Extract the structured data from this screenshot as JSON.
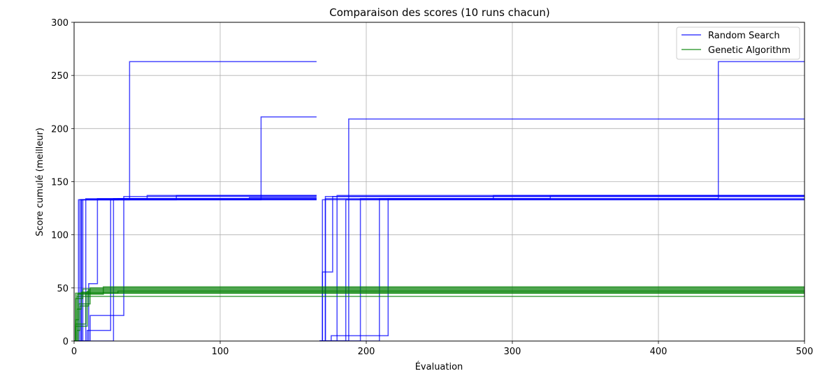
{
  "chart_data": {
    "type": "line",
    "title": "Comparaison des scores (10 runs chacun)",
    "xlabel": "Évaluation",
    "ylabel": "Score cumulé (meilleur)",
    "xlim": [
      0,
      500
    ],
    "ylim": [
      0,
      300
    ],
    "xticks": [
      0,
      100,
      200,
      300,
      400,
      500
    ],
    "yticks": [
      0,
      50,
      100,
      150,
      200,
      250,
      300
    ],
    "grid": true,
    "legend_position": "top-right",
    "legend": [
      {
        "label": "Random Search",
        "color": "#0000ff"
      },
      {
        "label": "Genetic Algorithm",
        "color": "#008000"
      }
    ],
    "series": [
      {
        "name": "Random Search",
        "color": "#0000ff",
        "runs": [
          {
            "x_start": 0,
            "x_end": 166,
            "points": [
              [
                0,
                0
              ],
              [
                3,
                0
              ],
              [
                3,
                133
              ],
              [
                166,
                133
              ]
            ]
          },
          {
            "x_start": 0,
            "x_end": 166,
            "points": [
              [
                0,
                0
              ],
              [
                5,
                0
              ],
              [
                5,
                133
              ],
              [
                166,
                133
              ]
            ]
          },
          {
            "x_start": 0,
            "x_end": 166,
            "points": [
              [
                0,
                0
              ],
              [
                8,
                0
              ],
              [
                8,
                134
              ],
              [
                166,
                134
              ]
            ]
          },
          {
            "x_start": 0,
            "x_end": 166,
            "points": [
              [
                0,
                0
              ],
              [
                9,
                0
              ],
              [
                9,
                10
              ],
              [
                25,
                10
              ],
              [
                25,
                133
              ],
              [
                30,
                133
              ],
              [
                30,
                134
              ],
              [
                120,
                134
              ],
              [
                120,
                135
              ],
              [
                166,
                135
              ]
            ]
          },
          {
            "x_start": 0,
            "x_end": 166,
            "points": [
              [
                0,
                0
              ],
              [
                11,
                0
              ],
              [
                11,
                24
              ],
              [
                34,
                24
              ],
              [
                34,
                136
              ],
              [
                166,
                136
              ]
            ]
          },
          {
            "x_start": 0,
            "x_end": 166,
            "points": [
              [
                0,
                0
              ],
              [
                27,
                0
              ],
              [
                27,
                134
              ],
              [
                166,
                134
              ]
            ]
          },
          {
            "x_start": 0,
            "x_end": 166,
            "points": [
              [
                0,
                0
              ],
              [
                10,
                0
              ],
              [
                10,
                54
              ],
              [
                16,
                54
              ],
              [
                16,
                134
              ],
              [
                50,
                134
              ],
              [
                50,
                137
              ],
              [
                166,
                137
              ]
            ]
          },
          {
            "x_start": 0,
            "x_end": 166,
            "points": [
              [
                0,
                0
              ],
              [
                5,
                0
              ],
              [
                5,
                133
              ],
              [
                38,
                133
              ],
              [
                38,
                263
              ],
              [
                166,
                263
              ]
            ]
          },
          {
            "x_start": 0,
            "x_end": 166,
            "points": [
              [
                0,
                0
              ],
              [
                6,
                0
              ],
              [
                6,
                133
              ],
              [
                128,
                133
              ],
              [
                128,
                211
              ],
              [
                166,
                211
              ]
            ]
          },
          {
            "x_start": 0,
            "x_end": 166,
            "points": [
              [
                0,
                0
              ],
              [
                4,
                0
              ],
              [
                4,
                133
              ],
              [
                70,
                133
              ],
              [
                70,
                137
              ],
              [
                166,
                137
              ]
            ]
          },
          {
            "x_start": 168,
            "x_end": 500,
            "points": [
              [
                168,
                0
              ],
              [
                170,
                0
              ],
              [
                170,
                133
              ],
              [
                500,
                133
              ]
            ]
          },
          {
            "x_start": 168,
            "x_end": 500,
            "points": [
              [
                168,
                0
              ],
              [
                170,
                0
              ],
              [
                170,
                65
              ],
              [
                177,
                65
              ],
              [
                177,
                136
              ],
              [
                500,
                136
              ]
            ]
          },
          {
            "x_start": 168,
            "x_end": 500,
            "points": [
              [
                168,
                0
              ],
              [
                172,
                0
              ],
              [
                172,
                136
              ],
              [
                500,
                136
              ]
            ]
          },
          {
            "x_start": 168,
            "x_end": 500,
            "points": [
              [
                168,
                0
              ],
              [
                176,
                0
              ],
              [
                176,
                5
              ],
              [
                215,
                5
              ],
              [
                215,
                134
              ],
              [
                326,
                134
              ],
              [
                326,
                137
              ],
              [
                500,
                137
              ]
            ]
          },
          {
            "x_start": 168,
            "x_end": 500,
            "points": [
              [
                168,
                0
              ],
              [
                186,
                0
              ],
              [
                186,
                133
              ],
              [
                500,
                133
              ]
            ]
          },
          {
            "x_start": 168,
            "x_end": 500,
            "points": [
              [
                168,
                0
              ],
              [
                188,
                0
              ],
              [
                188,
                209
              ],
              [
                500,
                209
              ]
            ]
          },
          {
            "x_start": 168,
            "x_end": 500,
            "points": [
              [
                168,
                0
              ],
              [
                196,
                0
              ],
              [
                196,
                134
              ],
              [
                500,
                134
              ]
            ]
          },
          {
            "x_start": 168,
            "x_end": 500,
            "points": [
              [
                168,
                0
              ],
              [
                209,
                0
              ],
              [
                209,
                134
              ],
              [
                287,
                134
              ],
              [
                287,
                137
              ],
              [
                500,
                137
              ]
            ]
          },
          {
            "x_start": 168,
            "x_end": 500,
            "points": [
              [
                168,
                0
              ],
              [
                180,
                0
              ],
              [
                180,
                137
              ],
              [
                500,
                137
              ]
            ]
          },
          {
            "x_start": 168,
            "x_end": 500,
            "points": [
              [
                168,
                0
              ],
              [
                172,
                0
              ],
              [
                172,
                134
              ],
              [
                441,
                134
              ],
              [
                441,
                263
              ],
              [
                500,
                263
              ]
            ]
          }
        ]
      },
      {
        "name": "Genetic Algorithm",
        "color": "#008000",
        "runs": [
          {
            "x_start": 0,
            "x_end": 500,
            "points": [
              [
                0,
                0
              ],
              [
                1,
                0
              ],
              [
                1,
                20
              ],
              [
                3,
                20
              ],
              [
                3,
                45
              ],
              [
                500,
                45
              ]
            ]
          },
          {
            "x_start": 0,
            "x_end": 500,
            "points": [
              [
                0,
                0
              ],
              [
                2,
                0
              ],
              [
                2,
                30
              ],
              [
                5,
                30
              ],
              [
                5,
                46
              ],
              [
                500,
                46
              ]
            ]
          },
          {
            "x_start": 0,
            "x_end": 500,
            "points": [
              [
                0,
                0
              ],
              [
                1,
                0
              ],
              [
                1,
                14
              ],
              [
                9,
                14
              ],
              [
                9,
                47
              ],
              [
                500,
                47
              ]
            ]
          },
          {
            "x_start": 0,
            "x_end": 500,
            "points": [
              [
                0,
                0
              ],
              [
                2,
                0
              ],
              [
                2,
                10
              ],
              [
                4,
                10
              ],
              [
                4,
                33
              ],
              [
                10,
                33
              ],
              [
                10,
                48
              ],
              [
                500,
                48
              ]
            ]
          },
          {
            "x_start": 0,
            "x_end": 500,
            "points": [
              [
                0,
                0
              ],
              [
                1,
                0
              ],
              [
                1,
                40
              ],
              [
                6,
                40
              ],
              [
                6,
                49
              ],
              [
                500,
                49
              ]
            ]
          },
          {
            "x_start": 0,
            "x_end": 500,
            "points": [
              [
                0,
                0
              ],
              [
                3,
                0
              ],
              [
                3,
                35
              ],
              [
                11,
                35
              ],
              [
                11,
                50
              ],
              [
                500,
                50
              ]
            ]
          },
          {
            "x_start": 0,
            "x_end": 500,
            "points": [
              [
                0,
                0
              ],
              [
                2,
                0
              ],
              [
                2,
                44
              ],
              [
                20,
                44
              ],
              [
                20,
                51
              ],
              [
                500,
                51
              ]
            ]
          },
          {
            "x_start": 0,
            "x_end": 500,
            "points": [
              [
                0,
                0
              ],
              [
                1,
                0
              ],
              [
                1,
                16
              ],
              [
                8,
                16
              ],
              [
                8,
                45
              ],
              [
                500,
                45
              ]
            ]
          },
          {
            "x_start": 0,
            "x_end": 500,
            "points": [
              [
                0,
                0
              ],
              [
                2,
                0
              ],
              [
                2,
                42
              ],
              [
                500,
                42
              ],
              [
                500,
                46
              ]
            ]
          },
          {
            "x_start": 0,
            "x_end": 500,
            "points": [
              [
                0,
                0
              ],
              [
                1,
                0
              ],
              [
                1,
                45
              ],
              [
                30,
                45
              ],
              [
                30,
                47
              ],
              [
                500,
                47
              ]
            ]
          }
        ]
      }
    ]
  }
}
